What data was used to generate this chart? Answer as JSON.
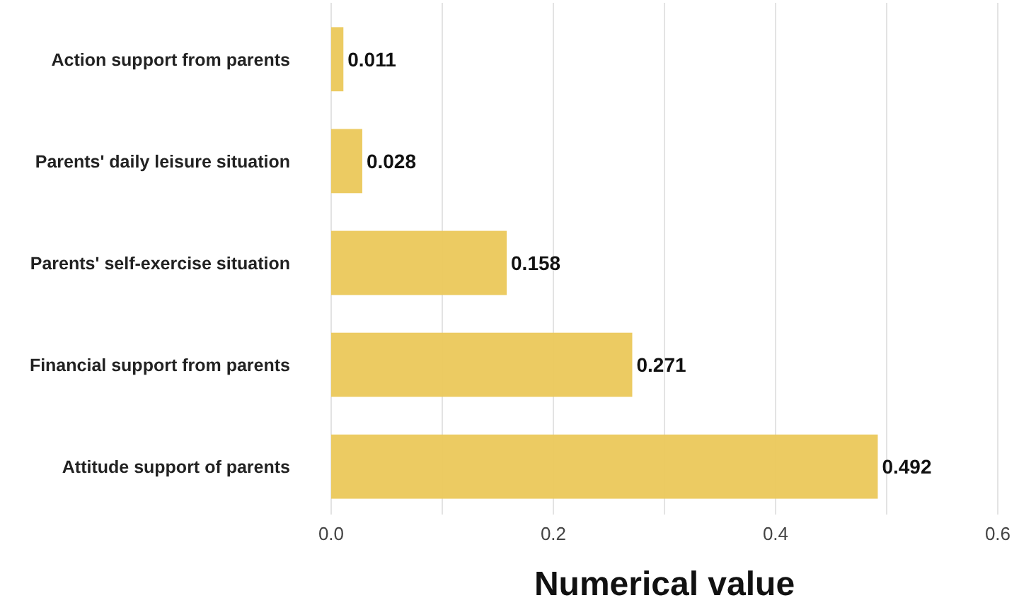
{
  "chart_data": {
    "type": "bar",
    "orientation": "horizontal",
    "xlabel": "Numerical value",
    "categories": [
      "Action support from parents",
      "Parents' daily leisure situation",
      "Parents' self-exercise situation",
      "Financial support from parents",
      "Attitude support of parents"
    ],
    "values": [
      0.011,
      0.028,
      0.158,
      0.271,
      0.492
    ],
    "color": "#ebc85a",
    "data_labels": true,
    "xlim": [
      0,
      0.6
    ],
    "xticks": [
      {
        "value": 0,
        "label": "0.0"
      },
      {
        "value": 0.1,
        "label": null
      },
      0.2,
      {
        "value": 0.3,
        "label": null
      },
      0.4,
      {
        "value": 0.5,
        "label": null
      },
      0.6
    ],
    "grid": "x"
  }
}
